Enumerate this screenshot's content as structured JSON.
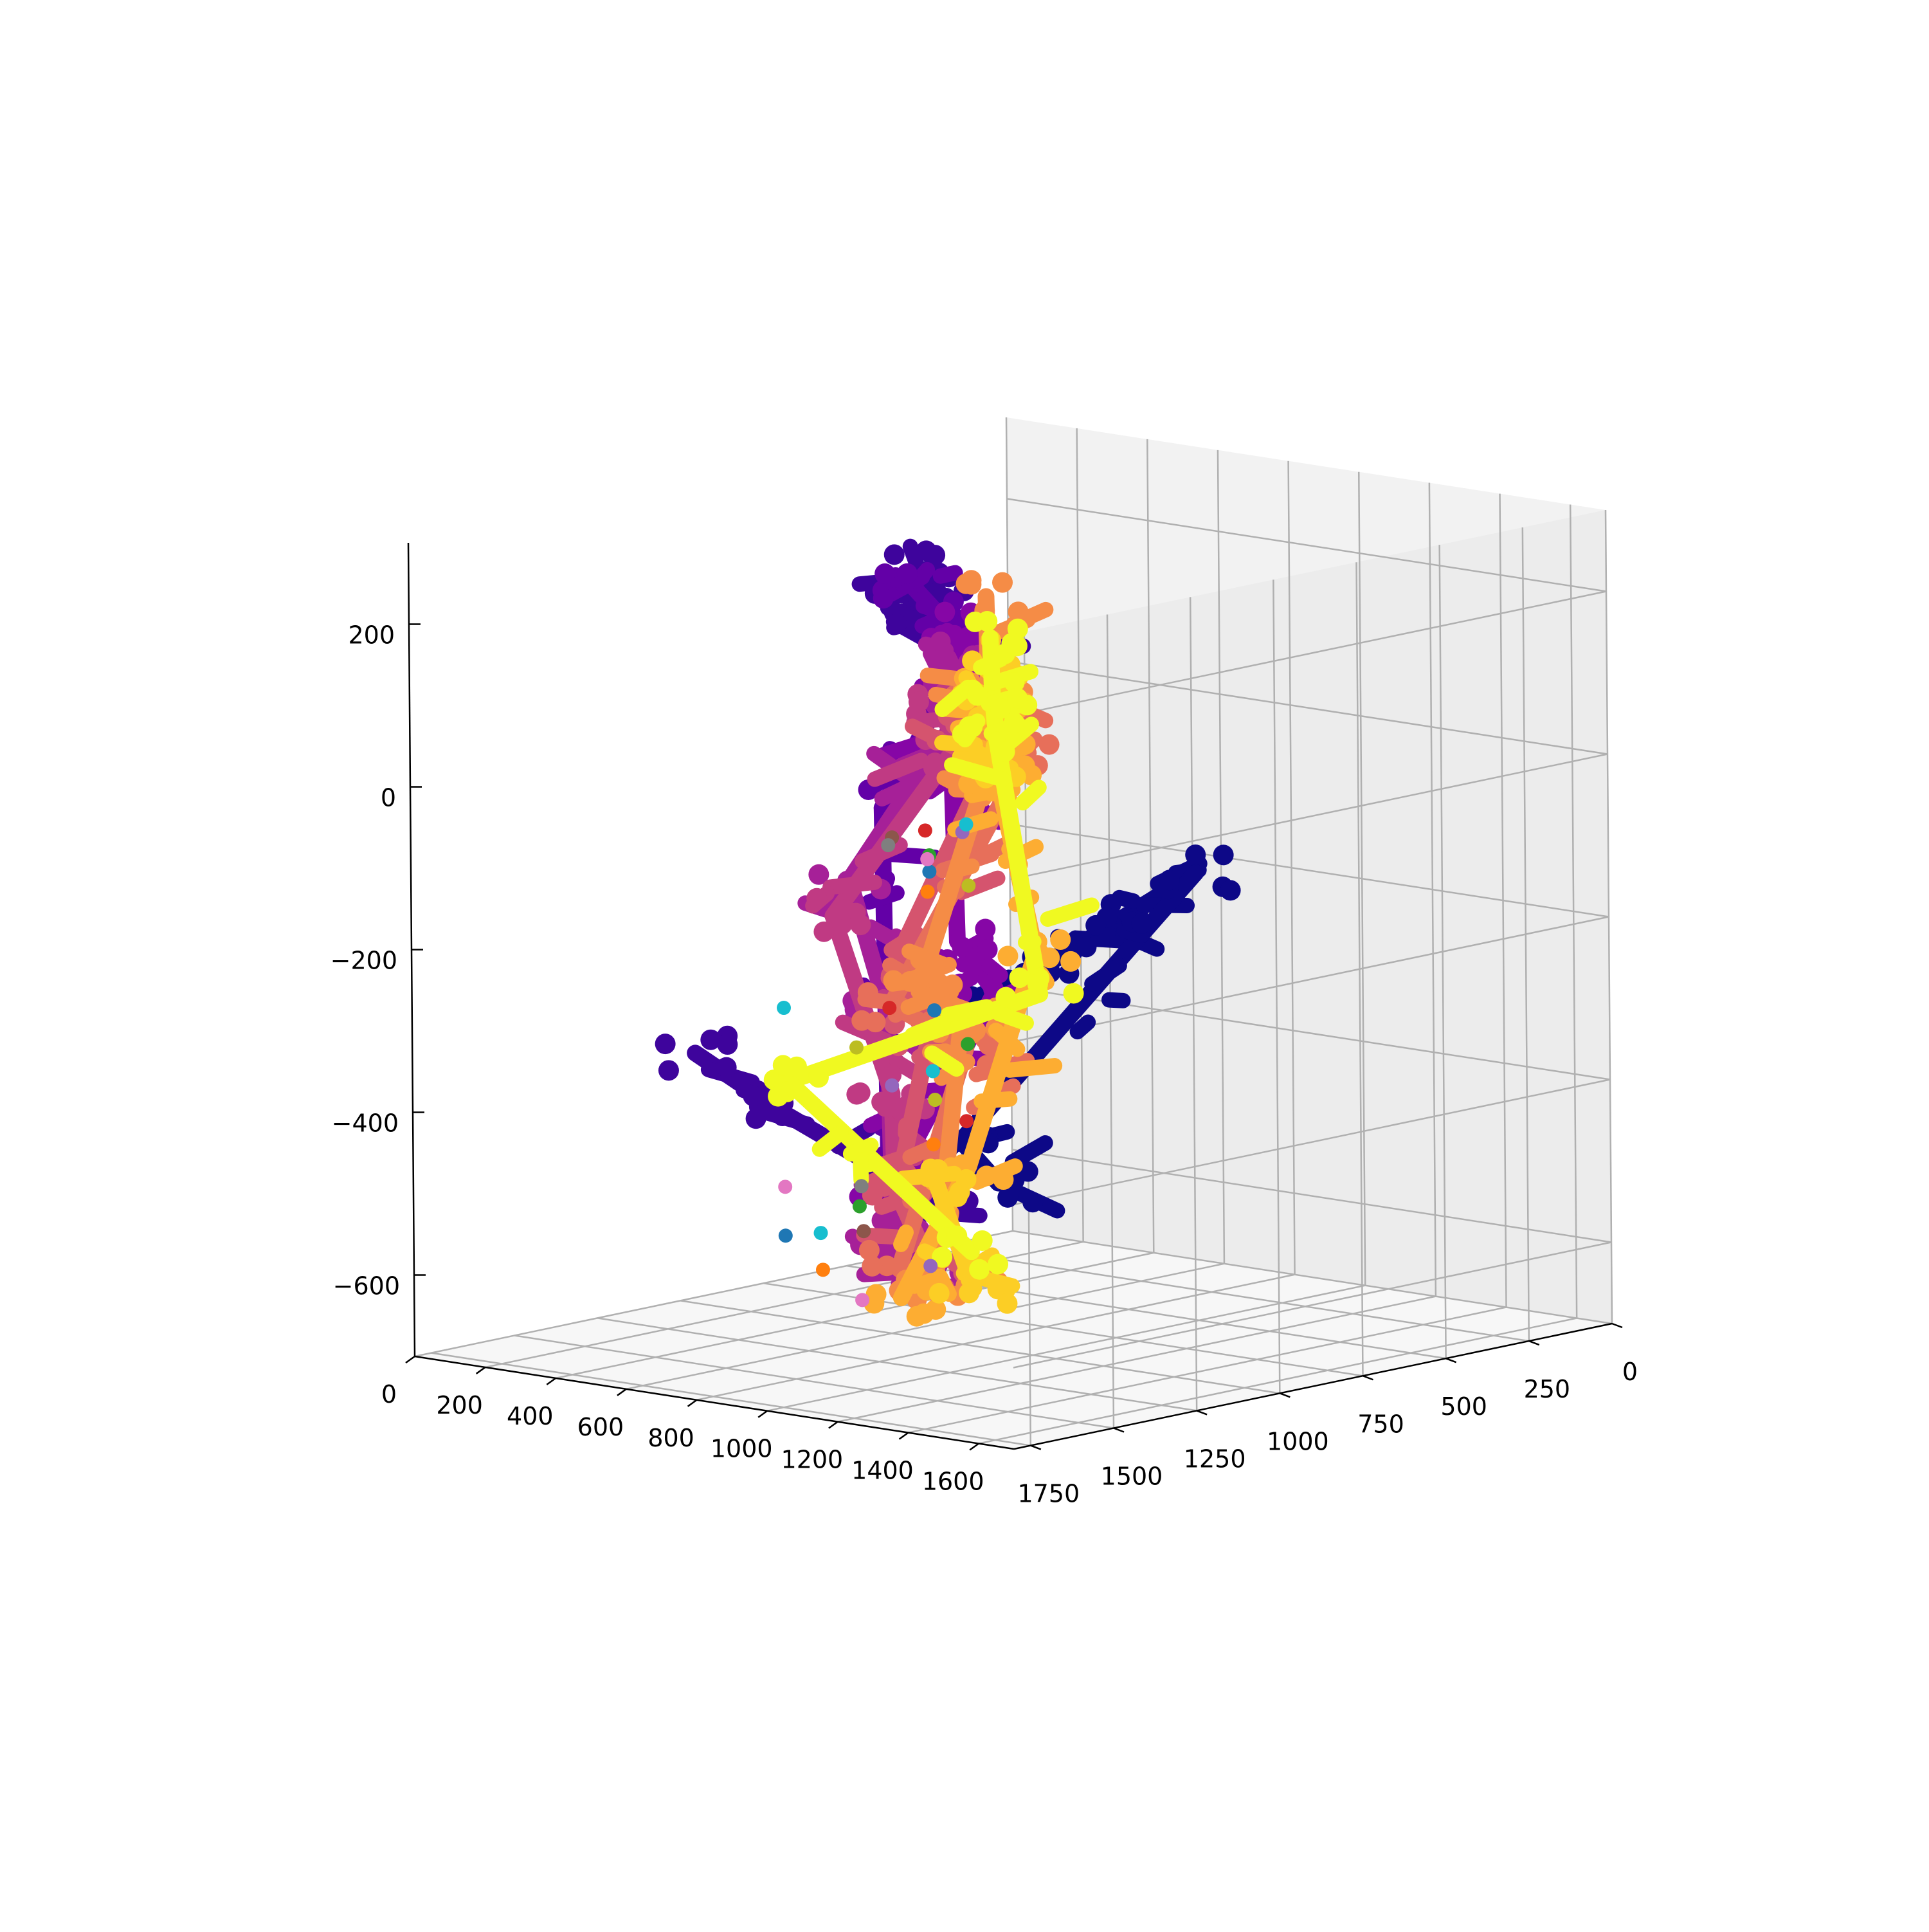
{
  "chart_data": {
    "type": "scatter",
    "projection": "3d",
    "title": "",
    "xlabel": "",
    "ylabel": "",
    "zlabel": "",
    "grid": true,
    "legend": "none",
    "xlim": [
      0,
      1700
    ],
    "ylim": [
      0,
      1800
    ],
    "zlim": [
      -700,
      300
    ],
    "x_ticks": [
      0,
      200,
      400,
      600,
      800,
      1000,
      1200,
      1400,
      1600
    ],
    "x_tick_labels": [
      "0",
      "200",
      "400",
      "600",
      "800",
      "1000",
      "1200",
      "1400",
      "1600"
    ],
    "y_ticks": [
      0,
      250,
      500,
      750,
      1000,
      1250,
      1500,
      1750
    ],
    "y_tick_labels": [
      "0",
      "250",
      "500",
      "750",
      "1000",
      "1250",
      "1500",
      "1750"
    ],
    "z_ticks": [
      -600,
      -400,
      -200,
      0,
      200
    ],
    "z_tick_labels": [
      "−600",
      "−400",
      "−200",
      "0",
      "200"
    ],
    "pane_color": "#f2f2f2",
    "grid_color": "#b0b0b0",
    "trajectory_colormap": "plasma",
    "trajectory_series": [
      {
        "name": "",
        "color": "#0d0887",
        "points": [
          [
            700,
            900,
            -300
          ],
          [
            800,
            700,
            -250
          ],
          [
            900,
            600,
            -200
          ],
          [
            1000,
            500,
            -150
          ],
          [
            800,
            1000,
            -450
          ],
          [
            1000,
            1100,
            -480
          ]
        ]
      },
      {
        "name": "",
        "color": "#3e049c",
        "points": [
          [
            120,
            420,
            110
          ],
          [
            150,
            430,
            160
          ],
          [
            200,
            440,
            140
          ],
          [
            250,
            460,
            90
          ],
          [
            300,
            480,
            60
          ],
          [
            0,
            950,
            -400
          ],
          [
            300,
            1000,
            -450
          ],
          [
            600,
            1050,
            -490
          ],
          [
            900,
            1150,
            -520
          ]
        ]
      },
      {
        "name": "",
        "color": "#6300a7",
        "points": [
          [
            200,
            500,
            150
          ],
          [
            300,
            520,
            120
          ],
          [
            400,
            560,
            80
          ],
          [
            300,
            700,
            -100
          ],
          [
            400,
            800,
            -300
          ],
          [
            500,
            900,
            -500
          ]
        ]
      },
      {
        "name": "",
        "color": "#8606a6",
        "points": [
          [
            300,
            500,
            100
          ],
          [
            450,
            600,
            60
          ],
          [
            500,
            700,
            -60
          ],
          [
            700,
            900,
            -220
          ],
          [
            900,
            1000,
            -260
          ],
          [
            600,
            1000,
            -520
          ]
        ]
      },
      {
        "name": "",
        "color": "#a62098",
        "points": [
          [
            400,
            600,
            80
          ],
          [
            500,
            650,
            40
          ],
          [
            300,
            800,
            -180
          ],
          [
            500,
            900,
            -320
          ],
          [
            700,
            1100,
            -560
          ],
          [
            900,
            1200,
            -600
          ]
        ]
      },
      {
        "name": "",
        "color": "#c03a83",
        "points": [
          [
            500,
            700,
            40
          ],
          [
            600,
            800,
            0
          ],
          [
            300,
            850,
            -220
          ],
          [
            700,
            1100,
            -390
          ],
          [
            800,
            1200,
            -470
          ]
        ]
      },
      {
        "name": "",
        "color": "#d5546e",
        "points": [
          [
            600,
            800,
            30
          ],
          [
            800,
            900,
            10
          ],
          [
            600,
            1000,
            -260
          ],
          [
            900,
            1200,
            -300
          ],
          [
            900,
            1300,
            -480
          ],
          [
            1100,
            1400,
            -560
          ]
        ]
      },
      {
        "name": "",
        "color": "#e76f5a",
        "points": [
          [
            700,
            800,
            60
          ],
          [
            1000,
            1000,
            40
          ],
          [
            700,
            1100,
            -280
          ],
          [
            1100,
            1300,
            -290
          ],
          [
            1000,
            1400,
            -560
          ]
        ]
      },
      {
        "name": "",
        "color": "#f58c46",
        "points": [
          [
            600,
            700,
            180
          ],
          [
            700,
            800,
            70
          ],
          [
            800,
            900,
            10
          ],
          [
            700,
            1000,
            -250
          ],
          [
            900,
            1100,
            -280
          ],
          [
            1100,
            1400,
            -580
          ]
        ]
      },
      {
        "name": "",
        "color": "#fdad32",
        "points": [
          [
            800,
            900,
            90
          ],
          [
            1000,
            1100,
            60
          ],
          [
            1200,
            1300,
            40
          ],
          [
            1300,
            1300,
            -160
          ],
          [
            1200,
            1400,
            -420
          ],
          [
            1100,
            1500,
            -580
          ]
        ]
      },
      {
        "name": "",
        "color": "#fcce25",
        "points": [
          [
            900,
            1000,
            150
          ],
          [
            1100,
            1200,
            120
          ],
          [
            1300,
            1400,
            80
          ],
          [
            1200,
            1500,
            -430
          ],
          [
            1400,
            1600,
            -540
          ]
        ]
      },
      {
        "name": "",
        "color": "#f0f921",
        "points": [
          [
            800,
            900,
            160
          ],
          [
            900,
            1000,
            100
          ],
          [
            1100,
            1200,
            80
          ],
          [
            1500,
            1500,
            -180
          ],
          [
            500,
            1200,
            -380
          ],
          [
            1300,
            1500,
            -510
          ]
        ]
      }
    ],
    "scatter_series": [
      {
        "name": "",
        "color": "#1f77b4",
        "points": [
          [
            1000,
            1300,
            -80
          ],
          [
            300,
            1000,
            -600
          ],
          [
            1200,
            1500,
            -220
          ]
        ]
      },
      {
        "name": "",
        "color": "#ff7f0e",
        "points": [
          [
            900,
            1200,
            -120
          ],
          [
            1100,
            1400,
            -400
          ],
          [
            500,
            1100,
            -620
          ]
        ]
      },
      {
        "name": "",
        "color": "#2ca02c",
        "points": [
          [
            1000,
            1300,
            -60
          ],
          [
            700,
            1200,
            -520
          ],
          [
            1200,
            1400,
            -270
          ]
        ]
      },
      {
        "name": "",
        "color": "#d62728",
        "points": [
          [
            800,
            1100,
            -60
          ],
          [
            600,
            1000,
            -300
          ],
          [
            1100,
            1300,
            -380
          ]
        ]
      },
      {
        "name": "",
        "color": "#9467bd",
        "points": [
          [
            1000,
            1200,
            -40
          ],
          [
            700,
            1100,
            -380
          ],
          [
            900,
            1200,
            -580
          ]
        ]
      },
      {
        "name": "",
        "color": "#8c564b",
        "points": [
          [
            800,
            1200,
            -60
          ],
          [
            900,
            1400,
            -520
          ]
        ]
      },
      {
        "name": "",
        "color": "#e377c2",
        "points": [
          [
            900,
            1200,
            -80
          ],
          [
            300,
            1000,
            -540
          ],
          [
            800,
            1300,
            -620
          ]
        ]
      },
      {
        "name": "",
        "color": "#7f7f7f",
        "points": [
          [
            600,
            1000,
            -100
          ],
          [
            800,
            1300,
            -480
          ]
        ]
      },
      {
        "name": "",
        "color": "#bcbd22",
        "points": [
          [
            1300,
            1500,
            -60
          ],
          [
            600,
            1100,
            -340
          ],
          [
            1200,
            1500,
            -330
          ]
        ]
      },
      {
        "name": "",
        "color": "#17becf",
        "points": [
          [
            1200,
            1400,
            0
          ],
          [
            300,
            1000,
            -320
          ],
          [
            1100,
            1400,
            -310
          ],
          [
            400,
            1000,
            -590
          ]
        ]
      }
    ]
  }
}
